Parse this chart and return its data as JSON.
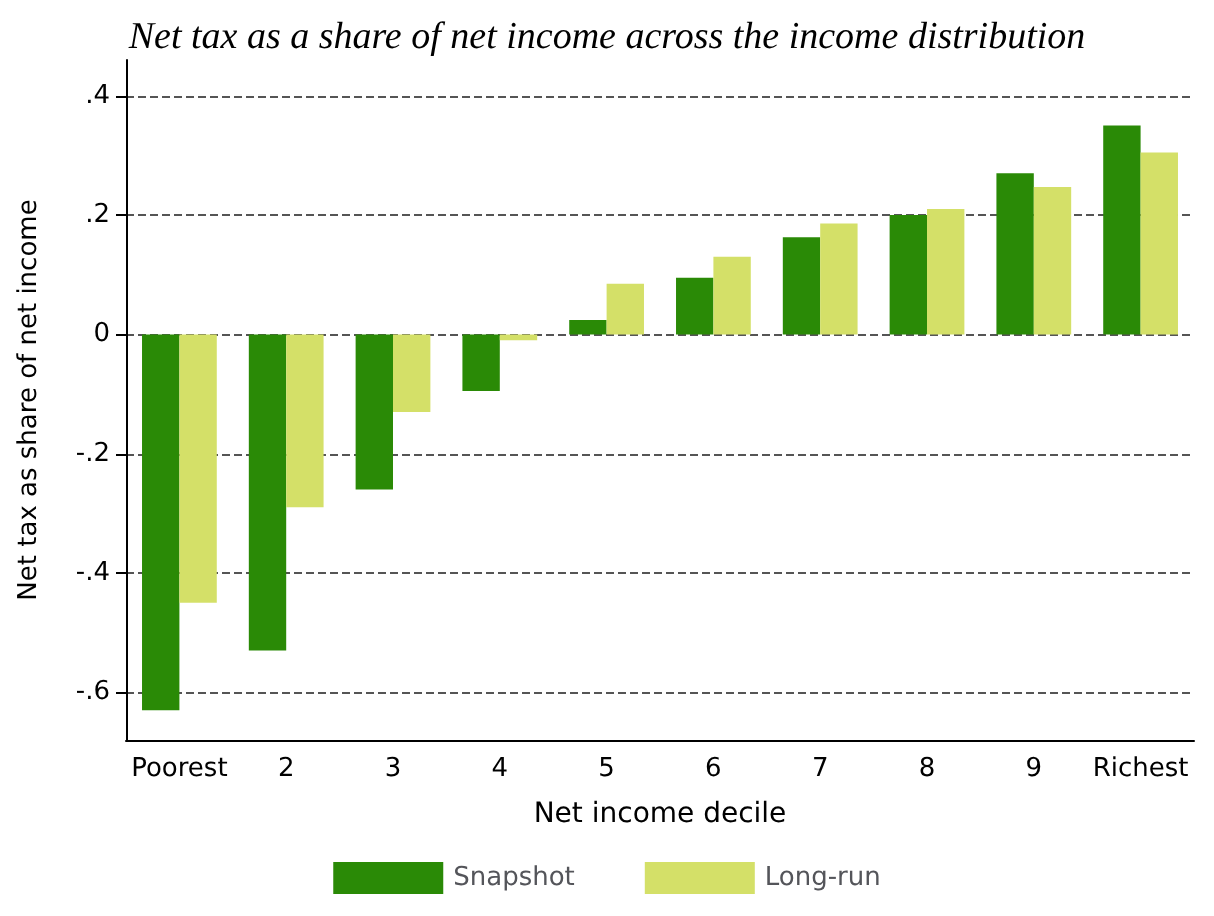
{
  "chart_data": {
    "type": "bar",
    "title": "Net tax as a share of net income across the income distribution",
    "xlabel": "Net income decile",
    "ylabel": "Net tax as share of net income",
    "categories": [
      "Poorest",
      "2",
      "3",
      "4",
      "5",
      "6",
      "7",
      "8",
      "9",
      "Richest"
    ],
    "series": [
      {
        "name": "Snapshot",
        "color": "#2a8a06",
        "values": [
          -0.63,
          -0.53,
          -0.26,
          -0.095,
          0.024,
          0.095,
          0.163,
          0.2,
          0.27,
          0.35
        ]
      },
      {
        "name": "Long-run",
        "color": "#d4e068",
        "values": [
          -0.45,
          -0.29,
          -0.13,
          -0.01,
          0.085,
          0.13,
          0.186,
          0.21,
          0.247,
          0.305
        ]
      }
    ],
    "ylim": [
      -0.68,
      0.46
    ],
    "yticks": [
      {
        "value": -0.6,
        "label": "-.6"
      },
      {
        "value": -0.4,
        "label": "-.4"
      },
      {
        "value": -0.2,
        "label": "-.2"
      },
      {
        "value": 0,
        "label": "0"
      },
      {
        "value": 0.2,
        "label": ".2"
      },
      {
        "value": 0.4,
        "label": ".4"
      }
    ],
    "grid": "y",
    "legend": "bottom"
  }
}
